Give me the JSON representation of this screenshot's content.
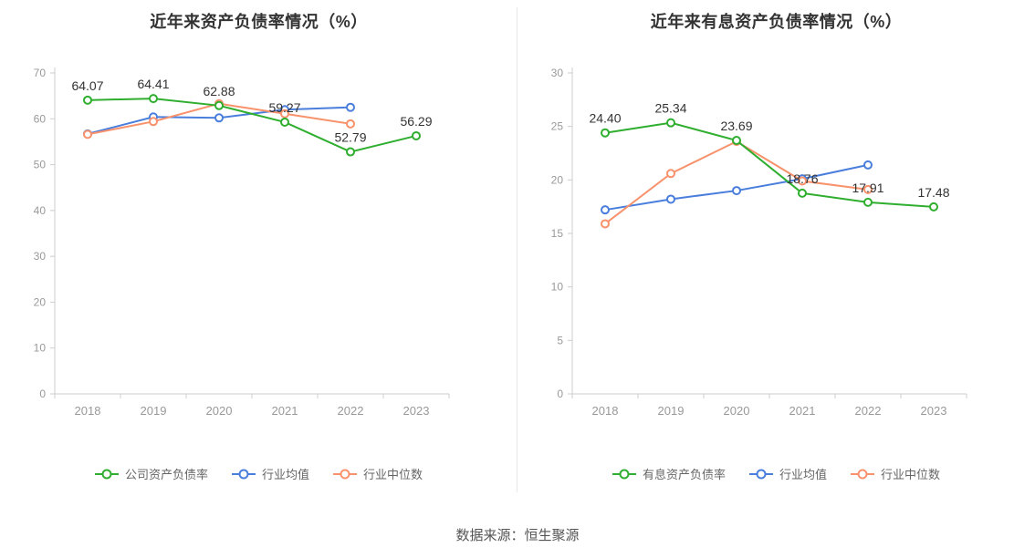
{
  "chart_data": [
    {
      "type": "line",
      "title": "近年来资产负债率情况（%）",
      "categories": [
        "2018",
        "2019",
        "2020",
        "2021",
        "2022",
        "2023"
      ],
      "ylim": [
        0,
        70
      ],
      "yticks": [
        0,
        10,
        20,
        30,
        40,
        50,
        60,
        70
      ],
      "grid": false,
      "legend_position": "bottom",
      "series": [
        {
          "name": "公司资产负债率",
          "color_key": "company",
          "values": [
            64.07,
            64.41,
            62.88,
            59.27,
            52.79,
            56.29
          ],
          "labels": [
            "64.07",
            "64.41",
            "62.88",
            "59.27",
            "52.79",
            "56.29"
          ]
        },
        {
          "name": "行业均值",
          "color_key": "industry_mean",
          "values": [
            56.7,
            60.4,
            60.2,
            62.0,
            62.5,
            null
          ]
        },
        {
          "name": "行业中位数",
          "color_key": "industry_median",
          "values": [
            56.6,
            59.4,
            63.3,
            61.1,
            58.9,
            null
          ]
        }
      ]
    },
    {
      "type": "line",
      "title": "近年来有息资产负债率情况（%）",
      "categories": [
        "2018",
        "2019",
        "2020",
        "2021",
        "2022",
        "2023"
      ],
      "ylim": [
        0,
        30
      ],
      "yticks": [
        0,
        5,
        10,
        15,
        20,
        25,
        30
      ],
      "grid": false,
      "legend_position": "bottom",
      "series": [
        {
          "name": "有息资产负债率",
          "color_key": "company",
          "values": [
            24.4,
            25.34,
            23.69,
            18.76,
            17.91,
            17.48
          ],
          "labels": [
            "24.40",
            "25.34",
            "23.69",
            "18.76",
            "17.91",
            "17.48"
          ]
        },
        {
          "name": "行业均值",
          "color_key": "industry_mean",
          "values": [
            17.2,
            18.2,
            19.0,
            20.1,
            21.4,
            null
          ]
        },
        {
          "name": "行业中位数",
          "color_key": "industry_median",
          "values": [
            15.9,
            20.6,
            23.6,
            19.9,
            19.1,
            null
          ]
        }
      ]
    }
  ],
  "colors": {
    "company": "#2fae2f",
    "industry_mean": "#4a7edc",
    "industry_median": "#f8926c",
    "axis": "#cccccc",
    "tick_text": "#999999",
    "legend_text": "#666666",
    "title_text": "#333333",
    "value_label": "#333333"
  },
  "footer": {
    "source_note": "数据来源：恒生聚源"
  }
}
